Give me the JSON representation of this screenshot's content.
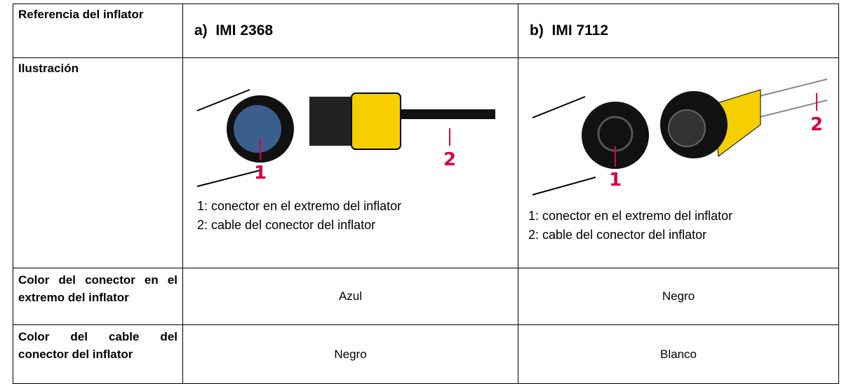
{
  "table": {
    "header": {
      "label": "Referencia del inflator",
      "columns": [
        "a)  IMI 2368",
        "b)  IMI 7112"
      ]
    },
    "illustration": {
      "label": "Ilustración",
      "panels": [
        {
          "callouts": [
            "1",
            "2"
          ],
          "legend": [
            "1: conector en el extremo del inflator",
            "2: cable del conector del inflator"
          ]
        },
        {
          "callouts": [
            "1",
            "2"
          ],
          "legend": [
            "1: conector en el extremo del inflator",
            "2: cable del conector del inflator"
          ]
        }
      ]
    },
    "rows": [
      [
        "Color del conector en el extremo del inflator",
        "Azul",
        "Negro"
      ],
      [
        "Color del cable del conector del inflator",
        "Negro",
        "Blanco"
      ]
    ]
  }
}
